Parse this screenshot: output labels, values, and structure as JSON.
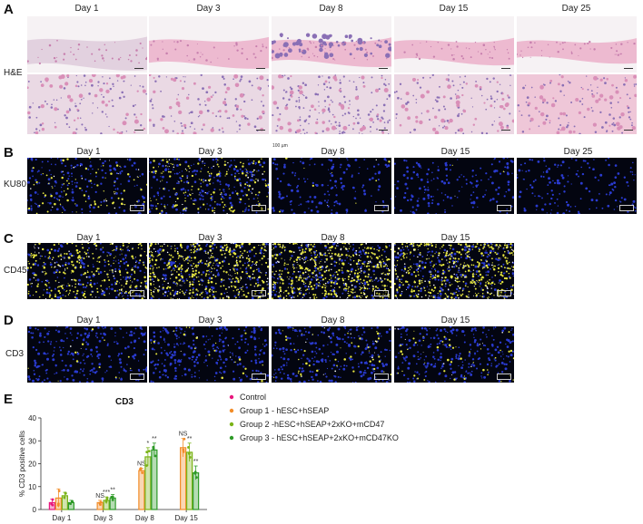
{
  "panels": {
    "A": {
      "letter": "A",
      "days": [
        "Day 1",
        "Day 3",
        "Day 8",
        "Day 15",
        "Day 25"
      ],
      "row_label": "H&E"
    },
    "B": {
      "letter": "B",
      "days": [
        "Day 1",
        "Day 3",
        "Day 8",
        "Day 15",
        "Day 25"
      ],
      "row_label": "KU80",
      "note": "100 µm"
    },
    "C": {
      "letter": "C",
      "days": [
        "Day 1",
        "Day 3",
        "Day 8",
        "Day 15"
      ],
      "row_label": "CD45"
    },
    "D": {
      "letter": "D",
      "days": [
        "Day 1",
        "Day 3",
        "Day 8",
        "Day 15"
      ],
      "row_label": "CD3"
    },
    "E": {
      "letter": "E"
    }
  },
  "colors": {
    "he_pink": "#e9a7c4",
    "he_purple": "#8a6fb5",
    "nuclei_blue": "#2a3bd0",
    "marker_yellow": "#e6e640",
    "fluo_bg": "#030510"
  },
  "chart_data": {
    "type": "bar",
    "title": "CD3",
    "ylabel": "% CD3 positive cells",
    "xlabel": "",
    "ylim": [
      0,
      40
    ],
    "yticks": [
      0,
      10,
      20,
      30,
      40
    ],
    "categories": [
      "Day 1",
      "Day 3",
      "Day 8",
      "Day 15"
    ],
    "legend_position": "right",
    "series": [
      {
        "name": "Control",
        "color": "#e8177d",
        "values": [
          3,
          null,
          null,
          null
        ]
      },
      {
        "name": "Group 1 - hESC+hSEAP",
        "color": "#f28c28",
        "values": [
          5,
          3,
          17,
          27
        ]
      },
      {
        "name": "Group 2 -hESC+hSEAP+2xKO+mCD47",
        "color": "#7ab317",
        "values": [
          6,
          4,
          23,
          25
        ]
      },
      {
        "name": "Group 3 - hESC+hSEAP+2xKO+mCD47KO",
        "color": "#2e9a28",
        "values": [
          3,
          5,
          26,
          16
        ]
      }
    ],
    "errors": [
      [
        1.5,
        null,
        null,
        null
      ],
      [
        4,
        1,
        1,
        4
      ],
      [
        1.5,
        1.5,
        4,
        4
      ],
      [
        1,
        1.5,
        3,
        3
      ]
    ],
    "significance": [
      [
        "",
        "NS",
        "NS",
        "NS"
      ],
      [
        "",
        "NS",
        "NS",
        "NS"
      ],
      [
        "",
        "***",
        "*",
        "**"
      ],
      [
        "",
        "**",
        "**",
        "**"
      ]
    ]
  }
}
